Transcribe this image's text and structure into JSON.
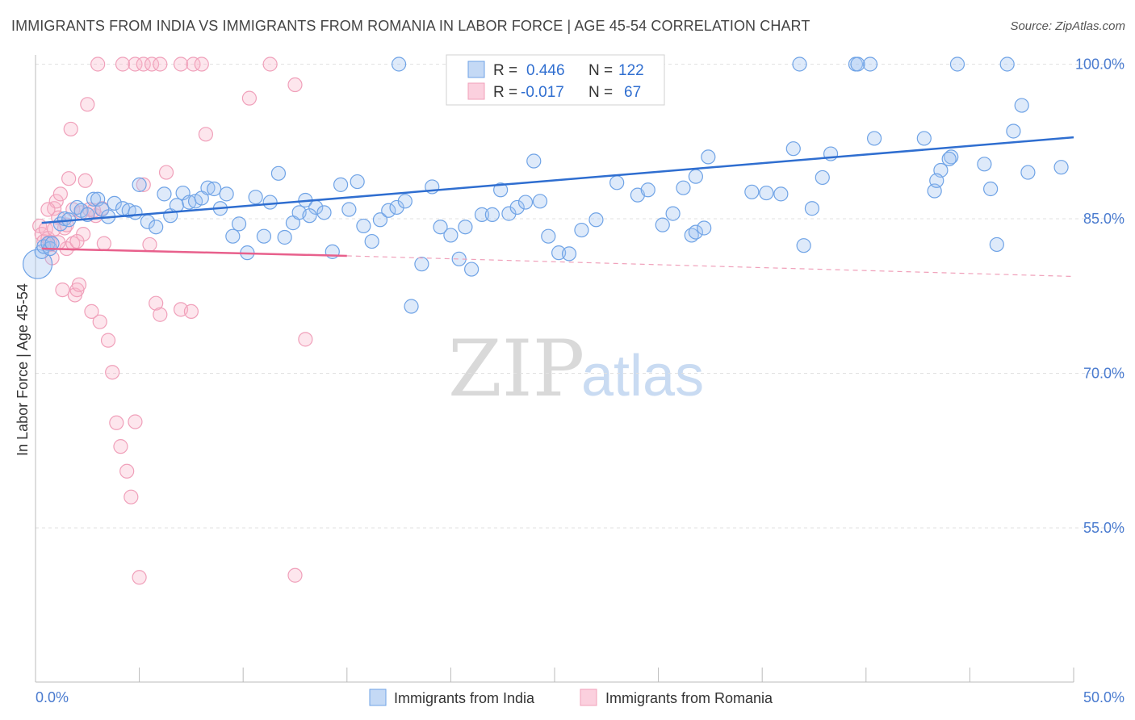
{
  "title": "IMMIGRANTS FROM INDIA VS IMMIGRANTS FROM ROMANIA IN LABOR FORCE | AGE 45-54 CORRELATION CHART",
  "source": "Source: ZipAtlas.com",
  "watermark": {
    "zip": "ZIP",
    "atlas": "atlas"
  },
  "colors": {
    "india": "#6fa3e6",
    "india_line": "#2f6ed0",
    "romania": "#f0a0ba",
    "romania_line": "#e8608c",
    "axis_text": "#4a7bcf"
  },
  "legend": {
    "india": {
      "r_label": "R =",
      "r_value": "0.446",
      "n_label": "N =",
      "n_value": "122"
    },
    "romania": {
      "r_label": "R =",
      "r_value": "-0.017",
      "n_label": "N =",
      "n_value": "67"
    }
  },
  "chart_data": {
    "type": "scatter",
    "title": "IMMIGRANTS FROM INDIA VS IMMIGRANTS FROM ROMANIA IN LABOR FORCE | AGE 45-54 CORRELATION CHART",
    "xlabel": "",
    "ylabel": "In Labor Force | Age 45-54",
    "xlim": [
      0,
      50
    ],
    "ylim": [
      40,
      101.4
    ],
    "x_tick_labels": [
      "0.0%",
      "50.0%"
    ],
    "y_ticks": [
      55,
      70,
      85,
      100
    ],
    "y_tick_labels": [
      "55.0%",
      "70.0%",
      "85.0%",
      "100.0%"
    ],
    "series": [
      {
        "name": "Immigrants from India",
        "r": 0.446,
        "n": 122,
        "trend": {
          "x": [
            0.3,
            50
          ],
          "y": [
            84.6,
            92.9
          ]
        },
        "points": [
          [
            0.1,
            80.6
          ],
          [
            0.3,
            81.8
          ],
          [
            0.4,
            82.3
          ],
          [
            0.6,
            82.6
          ],
          [
            0.7,
            82.1
          ],
          [
            0.8,
            82.6
          ],
          [
            1.2,
            84.5
          ],
          [
            1.4,
            85.0
          ],
          [
            1.6,
            84.9
          ],
          [
            2.0,
            86.1
          ],
          [
            2.2,
            85.8
          ],
          [
            2.5,
            85.4
          ],
          [
            2.8,
            86.9
          ],
          [
            3.0,
            86.9
          ],
          [
            3.2,
            85.9
          ],
          [
            3.5,
            85.2
          ],
          [
            3.8,
            86.5
          ],
          [
            4.2,
            86.0
          ],
          [
            4.5,
            85.8
          ],
          [
            4.8,
            85.6
          ],
          [
            5.0,
            88.3
          ],
          [
            5.4,
            84.7
          ],
          [
            5.8,
            84.2
          ],
          [
            6.2,
            87.4
          ],
          [
            6.5,
            85.3
          ],
          [
            6.8,
            86.3
          ],
          [
            7.1,
            87.5
          ],
          [
            7.4,
            86.6
          ],
          [
            7.7,
            86.7
          ],
          [
            8.0,
            87.0
          ],
          [
            8.3,
            88.0
          ],
          [
            8.6,
            87.9
          ],
          [
            8.9,
            86.0
          ],
          [
            9.2,
            87.4
          ],
          [
            9.5,
            83.3
          ],
          [
            9.8,
            84.5
          ],
          [
            10.2,
            81.7
          ],
          [
            10.6,
            87.1
          ],
          [
            11.0,
            83.3
          ],
          [
            11.3,
            86.6
          ],
          [
            11.7,
            89.4
          ],
          [
            12.0,
            83.2
          ],
          [
            12.4,
            84.6
          ],
          [
            12.7,
            85.6
          ],
          [
            13.0,
            86.8
          ],
          [
            13.5,
            86.1
          ],
          [
            13.9,
            85.6
          ],
          [
            14.3,
            81.8
          ],
          [
            14.7,
            88.3
          ],
          [
            15.1,
            85.9
          ],
          [
            15.5,
            88.6
          ],
          [
            15.8,
            84.3
          ],
          [
            16.2,
            82.8
          ],
          [
            16.6,
            84.9
          ],
          [
            17.0,
            85.8
          ],
          [
            17.4,
            86.1
          ],
          [
            17.8,
            86.7
          ],
          [
            18.1,
            76.5
          ],
          [
            18.6,
            80.6
          ],
          [
            19.1,
            88.1
          ],
          [
            19.5,
            84.2
          ],
          [
            20.0,
            83.4
          ],
          [
            20.4,
            81.1
          ],
          [
            20.7,
            84.2
          ],
          [
            21.0,
            80.1
          ],
          [
            21.5,
            85.4
          ],
          [
            22.0,
            85.4
          ],
          [
            22.4,
            87.8
          ],
          [
            22.8,
            85.5
          ],
          [
            23.2,
            86.1
          ],
          [
            23.6,
            86.6
          ],
          [
            24.0,
            90.6
          ],
          [
            24.3,
            86.7
          ],
          [
            24.7,
            83.3
          ],
          [
            25.2,
            81.7
          ],
          [
            25.7,
            81.6
          ],
          [
            26.3,
            83.9
          ],
          [
            27.0,
            84.9
          ],
          [
            28.0,
            88.5
          ],
          [
            29.0,
            87.3
          ],
          [
            29.5,
            87.8
          ],
          [
            30.2,
            84.4
          ],
          [
            30.7,
            85.5
          ],
          [
            31.6,
            83.4
          ],
          [
            31.8,
            83.7
          ],
          [
            31.2,
            88.0
          ],
          [
            31.8,
            89.1
          ],
          [
            32.4,
            91.0
          ],
          [
            34.5,
            87.6
          ],
          [
            35.2,
            87.5
          ],
          [
            35.9,
            87.4
          ],
          [
            36.5,
            91.8
          ],
          [
            37.0,
            82.4
          ],
          [
            37.4,
            86.0
          ],
          [
            37.9,
            89.0
          ],
          [
            38.3,
            91.3
          ],
          [
            40.4,
            92.8
          ],
          [
            42.8,
            92.8
          ],
          [
            43.3,
            87.7
          ],
          [
            43.6,
            89.7
          ],
          [
            44.1,
            91.0
          ],
          [
            45.7,
            90.3
          ],
          [
            46.0,
            87.9
          ],
          [
            46.3,
            82.5
          ],
          [
            47.1,
            93.5
          ],
          [
            47.5,
            96.0
          ],
          [
            47.8,
            89.5
          ],
          [
            49.4,
            90.0
          ],
          [
            43.4,
            88.7
          ],
          [
            44.0,
            90.8
          ],
          [
            17.5,
            100
          ],
          [
            20.8,
            100
          ],
          [
            22.4,
            100
          ],
          [
            22.9,
            100
          ],
          [
            39.5,
            100
          ],
          [
            40.2,
            100
          ],
          [
            36.8,
            100
          ],
          [
            39.6,
            100
          ],
          [
            44.4,
            100
          ],
          [
            46.8,
            100
          ],
          [
            32.2,
            84.1
          ],
          [
            13.2,
            85.3
          ]
        ]
      },
      {
        "name": "Immigrants from Romania",
        "r": -0.017,
        "n": 67,
        "trend": {
          "x": [
            0.3,
            15
          ],
          "y": [
            82.1,
            81.4
          ]
        },
        "trend_extension": {
          "x": [
            15,
            50
          ],
          "y": [
            81.4,
            79.4
          ]
        },
        "points": [
          [
            0.2,
            84.3
          ],
          [
            0.3,
            83.5
          ],
          [
            0.4,
            82.8
          ],
          [
            0.5,
            84.0
          ],
          [
            0.6,
            83.1
          ],
          [
            0.7,
            82.7
          ],
          [
            0.8,
            81.2
          ],
          [
            0.9,
            86.0
          ],
          [
            1.0,
            86.7
          ],
          [
            1.1,
            85.1
          ],
          [
            1.2,
            87.4
          ],
          [
            1.3,
            78.1
          ],
          [
            1.5,
            82.1
          ],
          [
            1.6,
            88.9
          ],
          [
            1.7,
            93.7
          ],
          [
            1.8,
            85.9
          ],
          [
            1.9,
            77.6
          ],
          [
            2.0,
            78.1
          ],
          [
            2.1,
            78.6
          ],
          [
            2.2,
            85.6
          ],
          [
            2.3,
            83.5
          ],
          [
            2.4,
            88.7
          ],
          [
            2.5,
            96.1
          ],
          [
            2.7,
            76.0
          ],
          [
            2.9,
            85.3
          ],
          [
            3.1,
            75.0
          ],
          [
            3.3,
            82.6
          ],
          [
            3.5,
            73.2
          ],
          [
            3.7,
            70.1
          ],
          [
            3.9,
            65.2
          ],
          [
            4.1,
            62.9
          ],
          [
            4.4,
            60.5
          ],
          [
            4.6,
            58.0
          ],
          [
            4.8,
            65.3
          ],
          [
            5.0,
            50.2
          ],
          [
            5.2,
            88.3
          ],
          [
            5.5,
            82.5
          ],
          [
            5.8,
            76.8
          ],
          [
            6.0,
            75.7
          ],
          [
            6.3,
            89.5
          ],
          [
            3.0,
            100
          ],
          [
            4.2,
            100
          ],
          [
            4.8,
            100
          ],
          [
            5.2,
            100
          ],
          [
            5.6,
            100
          ],
          [
            6.0,
            100
          ],
          [
            7.0,
            100
          ],
          [
            7.6,
            100
          ],
          [
            8.0,
            100
          ],
          [
            10.3,
            96.7
          ],
          [
            11.3,
            100
          ],
          [
            12.5,
            98.0
          ],
          [
            7.0,
            76.2
          ],
          [
            7.5,
            76.0
          ],
          [
            8.2,
            93.2
          ],
          [
            12.5,
            50.4
          ],
          [
            13.0,
            73.3
          ],
          [
            2.6,
            85.9
          ],
          [
            3.2,
            86.0
          ],
          [
            1.4,
            84.1
          ],
          [
            0.9,
            84.0
          ],
          [
            1.1,
            82.7
          ],
          [
            1.8,
            82.6
          ],
          [
            2.8,
            85.8
          ],
          [
            0.6,
            85.9
          ],
          [
            1.5,
            84.4
          ],
          [
            2.0,
            82.8
          ]
        ]
      }
    ]
  },
  "bottom_legend": {
    "india": "Immigrants from India",
    "romania": "Immigrants from Romania"
  }
}
